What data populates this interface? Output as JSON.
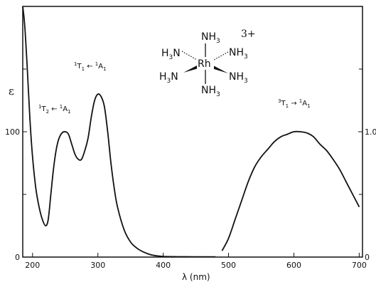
{
  "chart_data": {
    "type": "line",
    "title": "",
    "xlabel": "λ (nm)",
    "ylabel_left": "ε",
    "x_ticks": [
      200,
      300,
      400,
      500,
      600,
      700
    ],
    "xlim": [
      185,
      705
    ],
    "left_axis": {
      "ticks": [
        0,
        100
      ],
      "ylim": [
        0,
        200
      ]
    },
    "right_axis": {
      "ticks": [
        0,
        1.0
      ],
      "ylim": [
        0,
        2
      ]
    },
    "grid": false,
    "legend": "none",
    "series": [
      {
        "axis": "left",
        "points": [
          [
            185,
            200
          ],
          [
            188,
            185
          ],
          [
            192,
            150
          ],
          [
            196,
            110
          ],
          [
            200,
            80
          ],
          [
            205,
            55
          ],
          [
            210,
            40
          ],
          [
            215,
            30
          ],
          [
            220,
            25
          ],
          [
            224,
            30
          ],
          [
            228,
            50
          ],
          [
            232,
            70
          ],
          [
            236,
            85
          ],
          [
            240,
            94
          ],
          [
            245,
            99
          ],
          [
            250,
            100
          ],
          [
            255,
            98
          ],
          [
            260,
            90
          ],
          [
            265,
            82
          ],
          [
            270,
            78
          ],
          [
            275,
            78
          ],
          [
            280,
            85
          ],
          [
            285,
            95
          ],
          [
            290,
            112
          ],
          [
            295,
            125
          ],
          [
            300,
            130
          ],
          [
            305,
            128
          ],
          [
            310,
            120
          ],
          [
            315,
            100
          ],
          [
            320,
            75
          ],
          [
            325,
            55
          ],
          [
            330,
            40
          ],
          [
            340,
            22
          ],
          [
            350,
            12
          ],
          [
            360,
            7
          ],
          [
            370,
            4
          ],
          [
            380,
            2
          ],
          [
            390,
            1
          ],
          [
            400,
            0.5
          ],
          [
            420,
            0.3
          ],
          [
            450,
            0.2
          ],
          [
            470,
            0.2
          ],
          [
            480,
            0.2
          ]
        ]
      },
      {
        "axis": "right",
        "points": [
          [
            490,
            0.05
          ],
          [
            500,
            0.15
          ],
          [
            510,
            0.3
          ],
          [
            520,
            0.45
          ],
          [
            530,
            0.6
          ],
          [
            540,
            0.72
          ],
          [
            550,
            0.8
          ],
          [
            560,
            0.86
          ],
          [
            570,
            0.92
          ],
          [
            580,
            0.96
          ],
          [
            590,
            0.98
          ],
          [
            600,
            1.0
          ],
          [
            610,
            1.0
          ],
          [
            620,
            0.99
          ],
          [
            630,
            0.96
          ],
          [
            640,
            0.9
          ],
          [
            650,
            0.85
          ],
          [
            660,
            0.78
          ],
          [
            670,
            0.7
          ],
          [
            680,
            0.6
          ],
          [
            690,
            0.5
          ],
          [
            700,
            0.4
          ]
        ]
      }
    ],
    "annotations": [
      {
        "label": "1T2 ← 1A1",
        "pre": "1",
        "term": "T",
        "term_sub": "2",
        "arrow": " ← ",
        "pre2": "1",
        "term2": "A",
        "term2_sub": "1"
      },
      {
        "label": "1T1 ← 1A1",
        "pre": "1",
        "term": "T",
        "term_sub": "1",
        "arrow": " ← ",
        "pre2": "1",
        "term2": "A",
        "term2_sub": "1"
      },
      {
        "label": "3T1 → 1A1",
        "pre": "3",
        "term": "T",
        "term_sub": "1",
        "arrow": " → ",
        "pre2": "1",
        "term2": "A",
        "term2_sub": "1"
      }
    ],
    "molecule": {
      "center": "Rh",
      "ligand": "NH",
      "ligand_sub": "3",
      "charge": "3+"
    }
  }
}
